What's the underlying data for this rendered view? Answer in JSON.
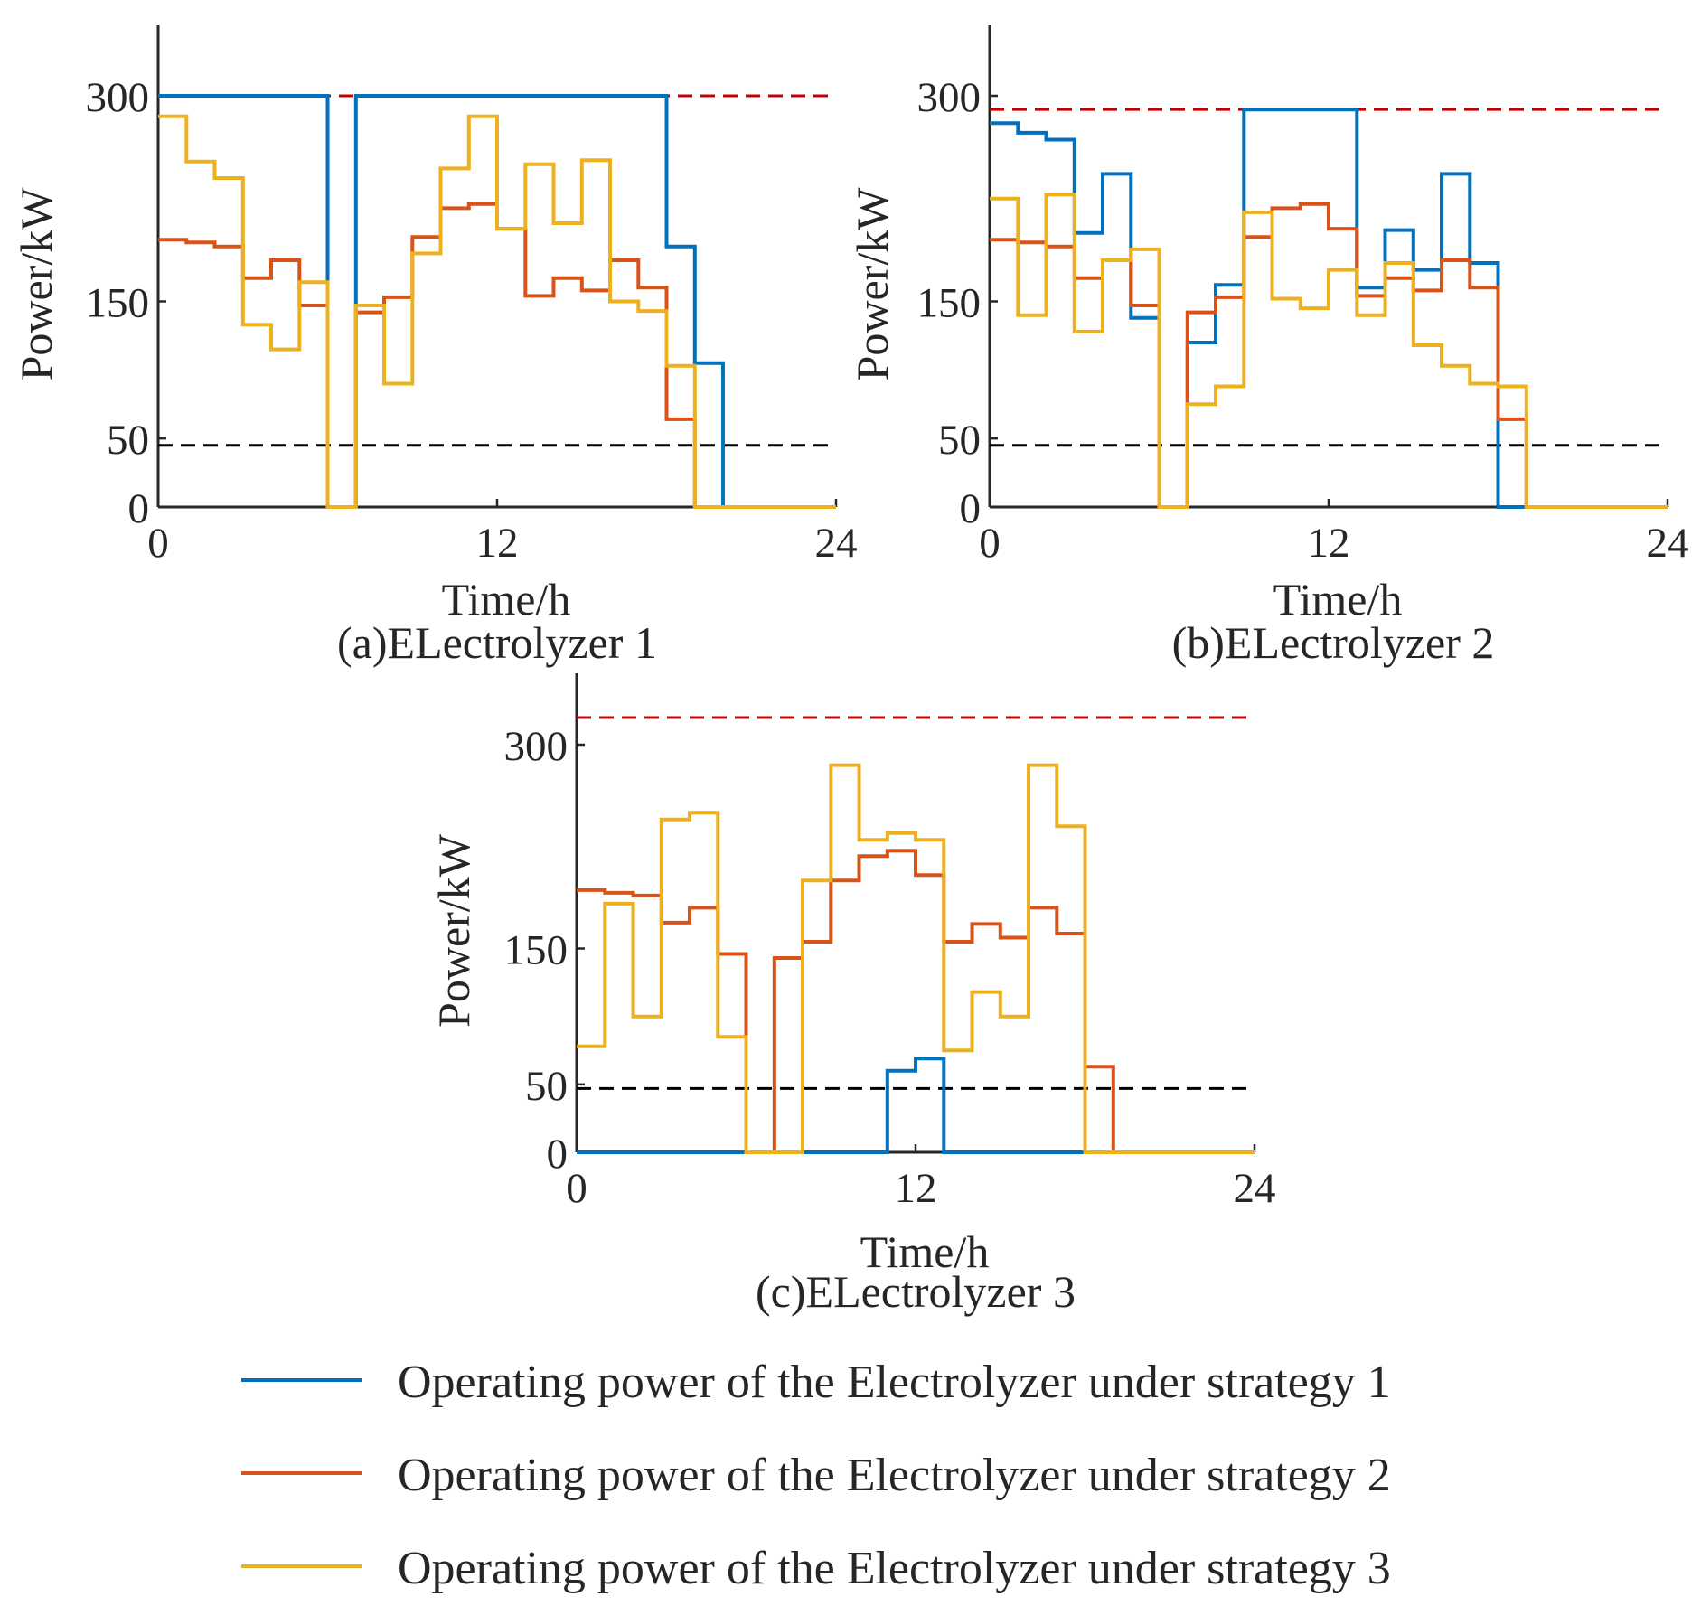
{
  "chart_data": [
    {
      "type": "line",
      "step": true,
      "caption": "(a)ELectrolyzer 1",
      "xlabel": "Time/h",
      "ylabel": "Power/kW",
      "xlim": [
        0,
        24
      ],
      "ylim": [
        0,
        350
      ],
      "xticks": [
        "0",
        "12",
        "24"
      ],
      "yticks": [
        0,
        50,
        150,
        300
      ],
      "ytick_labels": [
        "0",
        "50",
        "150",
        "300"
      ],
      "upper_limit": 300,
      "lower_limit": 45,
      "series": [
        {
          "name": "strategy 1",
          "values": [
            300,
            300,
            300,
            300,
            300,
            300,
            0,
            300,
            300,
            300,
            300,
            300,
            300,
            300,
            300,
            300,
            300,
            300,
            190,
            105,
            0,
            0,
            0,
            0
          ]
        },
        {
          "name": "strategy 2",
          "values": [
            195,
            193,
            190,
            167,
            180,
            147,
            0,
            142,
            153,
            197,
            218,
            221,
            203,
            154,
            167,
            158,
            180,
            160,
            64,
            0,
            0,
            0,
            0,
            0
          ]
        },
        {
          "name": "strategy 3",
          "values": [
            285,
            252,
            240,
            133,
            115,
            164,
            0,
            147,
            90,
            185,
            247,
            285,
            203,
            250,
            207,
            253,
            150,
            143,
            103,
            0,
            0,
            0,
            0,
            0
          ]
        }
      ]
    },
    {
      "type": "line",
      "step": true,
      "caption": "(b)ELectrolyzer 2",
      "xlabel": "Time/h",
      "ylabel": "Power/kW",
      "xlim": [
        0,
        24
      ],
      "ylim": [
        0,
        350
      ],
      "xticks": [
        "0",
        "12",
        "24"
      ],
      "yticks": [
        0,
        50,
        150,
        300
      ],
      "ytick_labels": [
        "0",
        "50",
        "150",
        "300"
      ],
      "upper_limit": 290,
      "lower_limit": 45,
      "series": [
        {
          "name": "strategy 1",
          "values": [
            280,
            273,
            268,
            200,
            243,
            138,
            0,
            120,
            162,
            290,
            290,
            290,
            290,
            160,
            202,
            173,
            243,
            178,
            0,
            0,
            0,
            0,
            0,
            0
          ]
        },
        {
          "name": "strategy 2",
          "values": [
            195,
            193,
            190,
            167,
            180,
            147,
            0,
            142,
            153,
            197,
            218,
            221,
            203,
            154,
            167,
            158,
            180,
            160,
            64,
            0,
            0,
            0,
            0,
            0
          ]
        },
        {
          "name": "strategy 3",
          "values": [
            225,
            140,
            228,
            128,
            180,
            188,
            0,
            75,
            88,
            215,
            152,
            145,
            173,
            140,
            178,
            118,
            103,
            90,
            88,
            0,
            0,
            0,
            0,
            0
          ]
        }
      ]
    },
    {
      "type": "line",
      "step": true,
      "caption": "(c)ELectrolyzer 3",
      "xlabel": "Time/h",
      "ylabel": "Power/kW",
      "xlim": [
        0,
        24
      ],
      "ylim": [
        0,
        350
      ],
      "xticks": [
        "0",
        "12",
        "24"
      ],
      "yticks": [
        0,
        50,
        150,
        300
      ],
      "ytick_labels": [
        "0",
        "50",
        "150",
        "300"
      ],
      "upper_limit": 320,
      "lower_limit": 47,
      "series": [
        {
          "name": "strategy 1",
          "values": [
            0,
            0,
            0,
            0,
            0,
            0,
            0,
            0,
            0,
            0,
            0,
            60,
            69,
            0,
            0,
            0,
            0,
            0,
            0,
            0,
            0,
            0,
            0,
            0
          ]
        },
        {
          "name": "strategy 2",
          "values": [
            193,
            191,
            189,
            169,
            180,
            146,
            0,
            143,
            155,
            200,
            218,
            222,
            204,
            155,
            168,
            158,
            180,
            161,
            63,
            0,
            0,
            0,
            0,
            0
          ]
        },
        {
          "name": "strategy 3",
          "values": [
            78,
            183,
            100,
            245,
            250,
            85,
            0,
            0,
            200,
            285,
            230,
            235,
            230,
            75,
            118,
            100,
            285,
            240,
            0,
            0,
            0,
            0,
            0,
            0
          ]
        }
      ]
    }
  ],
  "legend": [
    {
      "label": "Operating power of the Electrolyzer under strategy 1",
      "color": "#0072BD"
    },
    {
      "label": "Operating power of the Electrolyzer under strategy 2",
      "color": "#D95319"
    },
    {
      "label": "Operating power of the Electrolyzer under strategy 3",
      "color": "#EDB120"
    }
  ],
  "colors": {
    "strategy_1": "#0072BD",
    "strategy_2": "#D95319",
    "strategy_3": "#EDB120",
    "upper_limit": "#C00000",
    "lower_limit": "#000000",
    "axis": "#262626"
  }
}
